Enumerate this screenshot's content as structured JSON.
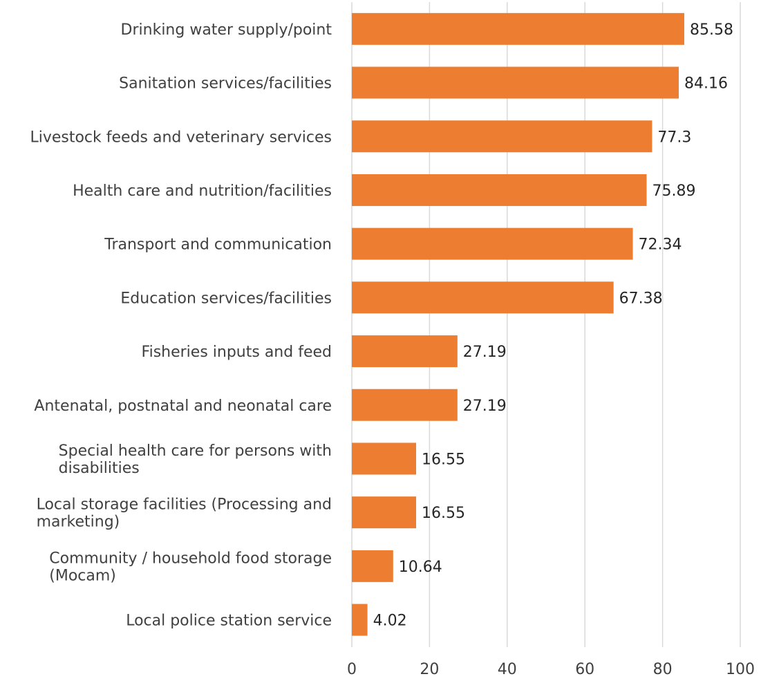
{
  "chart_data": {
    "type": "bar",
    "orientation": "horizontal",
    "categories": [
      "Drinking water supply/point",
      "Sanitation services/facilities",
      "Livestock feeds and veterinary services",
      "Health care and nutrition/facilities",
      "Transport and communication",
      "Education services/facilities",
      "Fisheries inputs and feed",
      "Antenatal, postnatal and neonatal care",
      "Special health care for persons with disabilities",
      "Local storage facilities (Processing and marketing)",
      "Community / household food storage (Mocam)",
      "Local police station service"
    ],
    "values": [
      85.58,
      84.16,
      77.3,
      75.89,
      72.34,
      67.38,
      27.19,
      27.19,
      16.55,
      16.55,
      10.64,
      4.02
    ],
    "value_labels": [
      "85.58",
      "84.16",
      "77.3",
      "75.89",
      "72.34",
      "67.38",
      "27.19",
      "27.19",
      "16.55",
      "16.55",
      "10.64",
      "4.02"
    ],
    "xlim": [
      0,
      100
    ],
    "x_ticks": [
      0,
      20,
      40,
      60,
      80,
      100
    ],
    "x_tick_labels": [
      "0",
      "20",
      "40",
      "60",
      "80",
      "100"
    ],
    "grid": true,
    "legend": "none",
    "title": "",
    "xlabel": "",
    "ylabel": "",
    "bar_color": "#ED7D31",
    "grid_color": "#D9D9D9"
  }
}
